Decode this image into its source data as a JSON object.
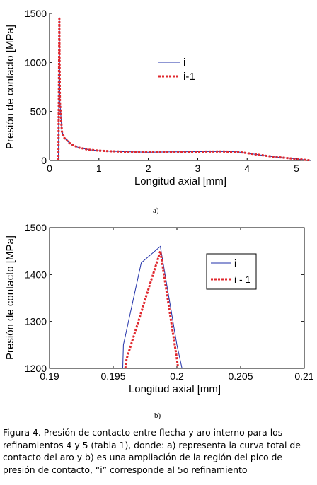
{
  "chart_data": [
    {
      "type": "line",
      "xlabel": "Longitud axial [mm]",
      "ylabel": "Presión de contacto [MPa]",
      "xlim": [
        0,
        5.3
      ],
      "ylim": [
        0,
        1500
      ],
      "xticks": [
        "0",
        "1",
        "2",
        "3",
        "4",
        "5"
      ],
      "xtick_values": [
        0,
        1,
        2,
        3,
        4,
        5
      ],
      "yticks": [
        "0",
        "500",
        "1000",
        "1500"
      ],
      "ytick_values": [
        0,
        500,
        1000,
        1500
      ],
      "grid": false,
      "legend_position": "center",
      "series": [
        {
          "name": "i",
          "color": "#1f2fa8",
          "style": "solid",
          "x": [
            0.18,
            0.196,
            0.198,
            0.2,
            0.21,
            0.25,
            0.3,
            0.4,
            0.5,
            0.6,
            0.8,
            1.0,
            1.2,
            1.5,
            2.0,
            2.5,
            3.0,
            3.5,
            3.8,
            4.0,
            4.2,
            4.5,
            4.8,
            5.0,
            5.1,
            5.2,
            5.28
          ],
          "y": [
            0,
            1250,
            1460,
            1200,
            600,
            300,
            230,
            180,
            150,
            130,
            110,
            100,
            95,
            90,
            85,
            88,
            90,
            92,
            88,
            75,
            60,
            40,
            25,
            15,
            10,
            5,
            0
          ]
        },
        {
          "name": "i-1",
          "color": "#e0282e",
          "style": "dotted",
          "x": [
            0.18,
            0.1957,
            0.1987,
            0.2,
            0.21,
            0.25,
            0.3,
            0.4,
            0.5,
            0.6,
            0.8,
            1.0,
            1.2,
            1.5,
            2.0,
            2.5,
            3.0,
            3.5,
            3.8,
            4.0,
            4.2,
            4.5,
            4.8,
            5.0,
            5.1,
            5.2,
            5.28
          ],
          "y": [
            0,
            1200,
            1450,
            1220,
            600,
            300,
            230,
            180,
            150,
            130,
            110,
            100,
            95,
            90,
            85,
            88,
            90,
            92,
            88,
            75,
            60,
            40,
            25,
            15,
            10,
            5,
            0
          ]
        }
      ]
    },
    {
      "type": "line",
      "xlabel": "Longitud axial [mm]",
      "ylabel": "Presión de contacto [MPa]",
      "xlim": [
        0.19,
        0.21
      ],
      "ylim": [
        1200,
        1500
      ],
      "xticks": [
        "0.19",
        "0.195",
        "0.2",
        "0.205",
        "0.21"
      ],
      "xtick_values": [
        0.19,
        0.195,
        0.2,
        0.205,
        0.21
      ],
      "yticks": [
        "1200",
        "1300",
        "1400",
        "1500"
      ],
      "ytick_values": [
        1200,
        1300,
        1400,
        1500
      ],
      "grid": false,
      "legend_position": "top-right",
      "series": [
        {
          "name": "i",
          "color": "#1f2fa8",
          "style": "solid",
          "x": [
            0.19575,
            0.1958,
            0.1972,
            0.1987,
            0.2,
            0.2004
          ],
          "y": [
            1200,
            1250,
            1425,
            1460,
            1250,
            1200
          ]
        },
        {
          "name": "i - 1",
          "color": "#e0282e",
          "style": "dotted",
          "x": [
            0.19595,
            0.19605,
            0.1987,
            0.2,
            0.2001
          ],
          "y": [
            1200,
            1220,
            1450,
            1220,
            1200
          ]
        }
      ]
    }
  ],
  "figure": {
    "sub_a": "a)",
    "sub_b": "b)"
  },
  "caption": "Figura 4. Presión de contacto entre flecha y aro interno para los refinamientos 4 y 5 (tabla 1), donde:  a) representa la curva total de contacto del aro y b) es una ampliación de la región del pico de presión de contacto, “i” corresponde al 5o refinamiento"
}
